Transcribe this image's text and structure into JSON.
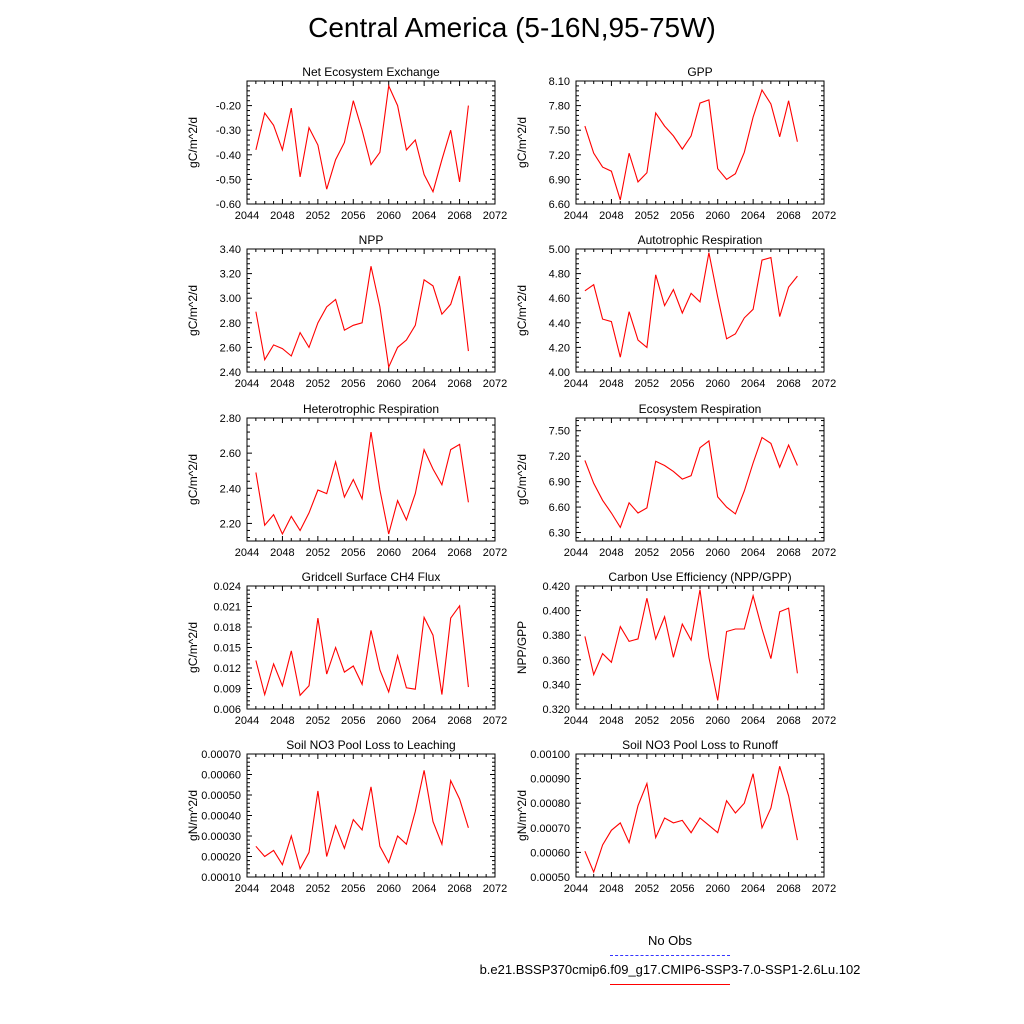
{
  "title": "Central America (5-16N,95-75W)",
  "legend": {
    "obs_label": "No Obs",
    "case_label": "b.e21.BSSP370cmip6.f09_g17.CMIP6-SSP3-7.0-SSP1-2.6Lu.102",
    "obs_color": "#3333ff",
    "case_color": "#ff0000"
  },
  "chart_data": [
    {
      "type": "line",
      "title": "Net Ecosystem Exchange",
      "xlabel": "",
      "ylabel": "gC/m^2/d",
      "xlim": [
        2044,
        2072
      ],
      "xticks": [
        2044,
        2048,
        2052,
        2056,
        2060,
        2064,
        2068,
        2072
      ],
      "ylim": [
        -0.6,
        -0.1
      ],
      "yticks": [
        -0.6,
        -0.5,
        -0.4,
        -0.3,
        -0.2
      ],
      "ytick_labels": [
        "-0.60",
        "-0.50",
        "-0.40",
        "-0.30",
        "-0.20"
      ],
      "x": [
        2045,
        2046,
        2047,
        2048,
        2049,
        2050,
        2051,
        2052,
        2053,
        2054,
        2055,
        2056,
        2057,
        2058,
        2059,
        2060,
        2061,
        2062,
        2063,
        2064,
        2065,
        2066,
        2067,
        2068,
        2069
      ],
      "y": [
        -0.38,
        -0.23,
        -0.28,
        -0.38,
        -0.21,
        -0.49,
        -0.29,
        -0.36,
        -0.54,
        -0.42,
        -0.35,
        -0.18,
        -0.3,
        -0.44,
        -0.39,
        -0.12,
        -0.2,
        -0.38,
        -0.34,
        -0.48,
        -0.55,
        -0.42,
        -0.3,
        -0.51,
        -0.2
      ]
    },
    {
      "type": "line",
      "title": "GPP",
      "xlabel": "",
      "ylabel": "gC/m^2/d",
      "xlim": [
        2044,
        2072
      ],
      "xticks": [
        2044,
        2048,
        2052,
        2056,
        2060,
        2064,
        2068,
        2072
      ],
      "ylim": [
        6.6,
        8.1
      ],
      "yticks": [
        6.6,
        6.9,
        7.2,
        7.5,
        7.8,
        8.1
      ],
      "ytick_labels": [
        "6.60",
        "6.90",
        "7.20",
        "7.50",
        "7.80",
        "8.10"
      ],
      "x": [
        2045,
        2046,
        2047,
        2048,
        2049,
        2050,
        2051,
        2052,
        2053,
        2054,
        2055,
        2056,
        2057,
        2058,
        2059,
        2060,
        2061,
        2062,
        2063,
        2064,
        2065,
        2066,
        2067,
        2068,
        2069
      ],
      "y": [
        7.55,
        7.22,
        7.05,
        7.0,
        6.65,
        7.22,
        6.87,
        6.98,
        7.71,
        7.55,
        7.43,
        7.27,
        7.43,
        7.83,
        7.87,
        7.03,
        6.9,
        6.97,
        7.23,
        7.66,
        7.99,
        7.82,
        7.42,
        7.86,
        7.36
      ]
    },
    {
      "type": "line",
      "title": "NPP",
      "xlabel": "",
      "ylabel": "gC/m^2/d",
      "xlim": [
        2044,
        2072
      ],
      "xticks": [
        2044,
        2048,
        2052,
        2056,
        2060,
        2064,
        2068,
        2072
      ],
      "ylim": [
        2.4,
        3.4
      ],
      "yticks": [
        2.4,
        2.6,
        2.8,
        3.0,
        3.2,
        3.4
      ],
      "ytick_labels": [
        "2.40",
        "2.60",
        "2.80",
        "3.00",
        "3.20",
        "3.40"
      ],
      "x": [
        2045,
        2046,
        2047,
        2048,
        2049,
        2050,
        2051,
        2052,
        2053,
        2054,
        2055,
        2056,
        2057,
        2058,
        2059,
        2060,
        2061,
        2062,
        2063,
        2064,
        2065,
        2066,
        2067,
        2068,
        2069
      ],
      "y": [
        2.89,
        2.5,
        2.62,
        2.59,
        2.53,
        2.72,
        2.6,
        2.8,
        2.93,
        2.99,
        2.74,
        2.78,
        2.8,
        3.26,
        2.93,
        2.44,
        2.6,
        2.66,
        2.78,
        3.15,
        3.1,
        2.87,
        2.95,
        3.18,
        2.57
      ]
    },
    {
      "type": "line",
      "title": "Autotrophic Respiration",
      "xlabel": "",
      "ylabel": "gC/m^2/d",
      "xlim": [
        2044,
        2072
      ],
      "xticks": [
        2044,
        2048,
        2052,
        2056,
        2060,
        2064,
        2068,
        2072
      ],
      "ylim": [
        4.0,
        5.0
      ],
      "yticks": [
        4.0,
        4.2,
        4.4,
        4.6,
        4.8,
        5.0
      ],
      "ytick_labels": [
        "4.00",
        "4.20",
        "4.40",
        "4.60",
        "4.80",
        "5.00"
      ],
      "x": [
        2045,
        2046,
        2047,
        2048,
        2049,
        2050,
        2051,
        2052,
        2053,
        2054,
        2055,
        2056,
        2057,
        2058,
        2059,
        2060,
        2061,
        2062,
        2063,
        2064,
        2065,
        2066,
        2067,
        2068,
        2069
      ],
      "y": [
        4.66,
        4.71,
        4.43,
        4.41,
        4.12,
        4.49,
        4.26,
        4.2,
        4.79,
        4.54,
        4.67,
        4.48,
        4.64,
        4.57,
        4.97,
        4.61,
        4.27,
        4.31,
        4.44,
        4.51,
        4.91,
        4.93,
        4.45,
        4.69,
        4.78
      ]
    },
    {
      "type": "line",
      "title": "Heterotrophic Respiration",
      "xlabel": "",
      "ylabel": "gC/m^2/d",
      "xlim": [
        2044,
        2072
      ],
      "xticks": [
        2044,
        2048,
        2052,
        2056,
        2060,
        2064,
        2068,
        2072
      ],
      "ylim": [
        2.1,
        2.8
      ],
      "yticks": [
        2.2,
        2.4,
        2.6,
        2.8
      ],
      "ytick_labels": [
        "2.20",
        "2.40",
        "2.60",
        "2.80"
      ],
      "x": [
        2045,
        2046,
        2047,
        2048,
        2049,
        2050,
        2051,
        2052,
        2053,
        2054,
        2055,
        2056,
        2057,
        2058,
        2059,
        2060,
        2061,
        2062,
        2063,
        2064,
        2065,
        2066,
        2067,
        2068,
        2069
      ],
      "y": [
        2.49,
        2.19,
        2.25,
        2.14,
        2.24,
        2.16,
        2.26,
        2.39,
        2.37,
        2.55,
        2.35,
        2.45,
        2.34,
        2.72,
        2.39,
        2.14,
        2.33,
        2.22,
        2.37,
        2.62,
        2.51,
        2.42,
        2.62,
        2.65,
        2.32
      ]
    },
    {
      "type": "line",
      "title": "Ecosystem Respiration",
      "xlabel": "",
      "ylabel": "gC/m^2/d",
      "xlim": [
        2044,
        2072
      ],
      "xticks": [
        2044,
        2048,
        2052,
        2056,
        2060,
        2064,
        2068,
        2072
      ],
      "ylim": [
        6.2,
        7.65
      ],
      "yticks": [
        6.3,
        6.6,
        6.9,
        7.2,
        7.5
      ],
      "ytick_labels": [
        "6.30",
        "6.60",
        "6.90",
        "7.20",
        "7.50"
      ],
      "x": [
        2045,
        2046,
        2047,
        2048,
        2049,
        2050,
        2051,
        2052,
        2053,
        2054,
        2055,
        2056,
        2057,
        2058,
        2059,
        2060,
        2061,
        2062,
        2063,
        2064,
        2065,
        2066,
        2067,
        2068,
        2069
      ],
      "y": [
        7.15,
        6.88,
        6.68,
        6.53,
        6.36,
        6.65,
        6.53,
        6.59,
        7.14,
        7.09,
        7.02,
        6.93,
        6.97,
        7.3,
        7.38,
        6.72,
        6.6,
        6.52,
        6.79,
        7.12,
        7.42,
        7.35,
        7.07,
        7.33,
        7.09
      ]
    },
    {
      "type": "line",
      "title": "Gridcell Surface CH4 Flux",
      "xlabel": "",
      "ylabel": "gC/m^2/d",
      "xlim": [
        2044,
        2072
      ],
      "xticks": [
        2044,
        2048,
        2052,
        2056,
        2060,
        2064,
        2068,
        2072
      ],
      "ylim": [
        0.006,
        0.024
      ],
      "yticks": [
        0.006,
        0.009,
        0.012,
        0.015,
        0.018,
        0.021,
        0.024
      ],
      "ytick_labels": [
        "0.006",
        "0.009",
        "0.012",
        "0.015",
        "0.018",
        "0.021",
        "0.024"
      ],
      "x": [
        2045,
        2046,
        2047,
        2048,
        2049,
        2050,
        2051,
        2052,
        2053,
        2054,
        2055,
        2056,
        2057,
        2058,
        2059,
        2060,
        2061,
        2062,
        2063,
        2064,
        2065,
        2066,
        2067,
        2068,
        2069
      ],
      "y": [
        0.0131,
        0.0081,
        0.0126,
        0.0094,
        0.0145,
        0.008,
        0.0094,
        0.0193,
        0.0111,
        0.015,
        0.0114,
        0.0123,
        0.0096,
        0.0175,
        0.0117,
        0.0085,
        0.0138,
        0.0091,
        0.0089,
        0.0194,
        0.0168,
        0.0081,
        0.0193,
        0.0211,
        0.0092
      ]
    },
    {
      "type": "line",
      "title": "Carbon Use Efficiency (NPP/GPP)",
      "xlabel": "",
      "ylabel": "NPP/GPP",
      "xlim": [
        2044,
        2072
      ],
      "xticks": [
        2044,
        2048,
        2052,
        2056,
        2060,
        2064,
        2068,
        2072
      ],
      "ylim": [
        0.32,
        0.42
      ],
      "yticks": [
        0.32,
        0.34,
        0.36,
        0.38,
        0.4,
        0.42
      ],
      "ytick_labels": [
        "0.320",
        "0.340",
        "0.360",
        "0.380",
        "0.400",
        "0.420"
      ],
      "x": [
        2045,
        2046,
        2047,
        2048,
        2049,
        2050,
        2051,
        2052,
        2053,
        2054,
        2055,
        2056,
        2057,
        2058,
        2059,
        2060,
        2061,
        2062,
        2063,
        2064,
        2065,
        2066,
        2067,
        2068,
        2069
      ],
      "y": [
        0.379,
        0.348,
        0.365,
        0.358,
        0.387,
        0.375,
        0.377,
        0.41,
        0.377,
        0.395,
        0.362,
        0.389,
        0.376,
        0.417,
        0.362,
        0.327,
        0.383,
        0.385,
        0.385,
        0.412,
        0.385,
        0.361,
        0.399,
        0.402,
        0.349
      ]
    },
    {
      "type": "line",
      "title": "Soil NO3 Pool Loss to Leaching",
      "xlabel": "",
      "ylabel": "gN/m^2/d",
      "xlim": [
        2044,
        2072
      ],
      "xticks": [
        2044,
        2048,
        2052,
        2056,
        2060,
        2064,
        2068,
        2072
      ],
      "ylim": [
        0.0001,
        0.0007
      ],
      "yticks": [
        0.0001,
        0.0002,
        0.0003,
        0.0004,
        0.0005,
        0.0006,
        0.0007
      ],
      "ytick_labels": [
        "0.00010",
        "0.00020",
        "0.00030",
        "0.00040",
        "0.00050",
        "0.00060",
        "0.00070"
      ],
      "x": [
        2045,
        2046,
        2047,
        2048,
        2049,
        2050,
        2051,
        2052,
        2053,
        2054,
        2055,
        2056,
        2057,
        2058,
        2059,
        2060,
        2061,
        2062,
        2063,
        2064,
        2065,
        2066,
        2067,
        2068,
        2069
      ],
      "y": [
        0.00025,
        0.0002,
        0.00023,
        0.00016,
        0.0003,
        0.00014,
        0.00022,
        0.00052,
        0.0002,
        0.00035,
        0.00024,
        0.00038,
        0.00033,
        0.00054,
        0.00025,
        0.00017,
        0.0003,
        0.00026,
        0.00042,
        0.00062,
        0.00037,
        0.00026,
        0.00057,
        0.00048,
        0.00034
      ]
    },
    {
      "type": "line",
      "title": "Soil NO3 Pool Loss to Runoff",
      "xlabel": "",
      "ylabel": "gN/m^2/d",
      "xlim": [
        2044,
        2072
      ],
      "xticks": [
        2044,
        2048,
        2052,
        2056,
        2060,
        2064,
        2068,
        2072
      ],
      "ylim": [
        0.0005,
        0.001
      ],
      "yticks": [
        0.0005,
        0.0006,
        0.0007,
        0.0008,
        0.0009,
        0.001
      ],
      "ytick_labels": [
        "0.00050",
        "0.00060",
        "0.00070",
        "0.00080",
        "0.00090",
        "0.00100"
      ],
      "x": [
        2045,
        2046,
        2047,
        2048,
        2049,
        2050,
        2051,
        2052,
        2053,
        2054,
        2055,
        2056,
        2057,
        2058,
        2059,
        2060,
        2061,
        2062,
        2063,
        2064,
        2065,
        2066,
        2067,
        2068,
        2069
      ],
      "y": [
        0.000605,
        0.00052,
        0.00063,
        0.00069,
        0.00072,
        0.00064,
        0.00079,
        0.00088,
        0.00066,
        0.00074,
        0.00072,
        0.00073,
        0.00068,
        0.00074,
        0.00071,
        0.00068,
        0.00081,
        0.00076,
        0.0008,
        0.00092,
        0.0007,
        0.00078,
        0.00095,
        0.00083,
        0.00065
      ]
    }
  ]
}
